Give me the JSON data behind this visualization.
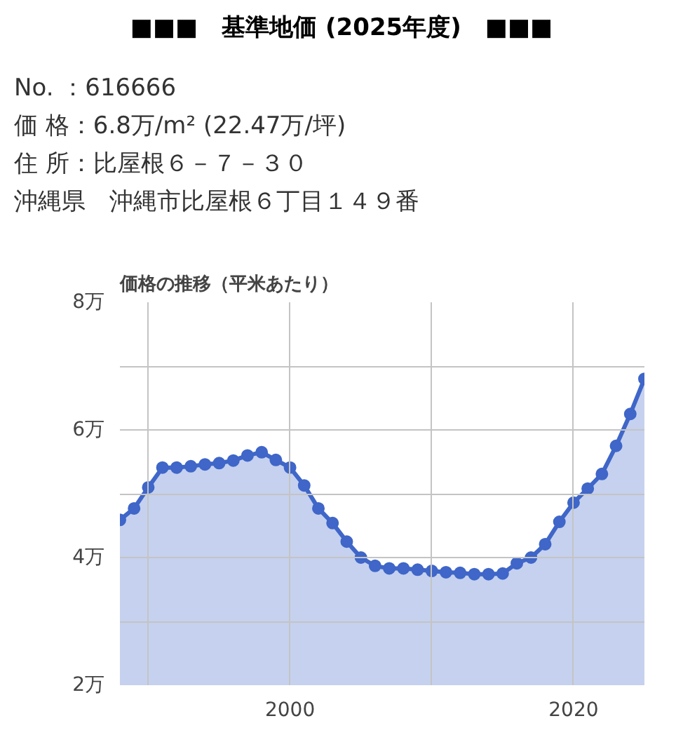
{
  "chart_data": {
    "type": "area",
    "title": "■■■　基準地価 (2025年度)　■■■",
    "annotations": [
      "No. ：616666",
      "価 格：6.8万/m² (22.47万/坪)",
      "住 所：比屋根６－７－３０",
      "沖縄県　沖縄市比屋根６丁目１４９番"
    ],
    "subtitle": "価格の推移（平米あたり）",
    "x": [
      1988,
      1989,
      1990,
      1991,
      1992,
      1993,
      1994,
      1995,
      1996,
      1997,
      1998,
      1999,
      2000,
      2001,
      2002,
      2003,
      2004,
      2005,
      2006,
      2007,
      2008,
      2009,
      2010,
      2011,
      2012,
      2013,
      2014,
      2015,
      2016,
      2017,
      2018,
      2019,
      2020,
      2021,
      2022,
      2023,
      2024,
      2025
    ],
    "series": [
      {
        "color": "#3f66c8",
        "values": [
          4.59,
          4.77,
          5.1,
          5.41,
          5.41,
          5.43,
          5.46,
          5.48,
          5.52,
          5.6,
          5.65,
          5.53,
          5.41,
          5.13,
          4.77,
          4.54,
          4.25,
          4.0,
          3.87,
          3.83,
          3.83,
          3.81,
          3.79,
          3.77,
          3.76,
          3.74,
          3.74,
          3.75,
          3.91,
          4.0,
          4.21,
          4.56,
          4.86,
          5.08,
          5.31,
          5.75,
          6.25,
          6.8
        ]
      }
    ],
    "xlim": [
      1988,
      2025
    ],
    "xticks": [
      {
        "value": 1990,
        "label": null
      },
      2000,
      {
        "value": 2010,
        "label": null
      },
      2020
    ],
    "ylim": [
      2,
      8
    ],
    "yticks": [
      {
        "value": 2,
        "label": "2万"
      },
      {
        "value": 3,
        "label": null
      },
      {
        "value": 4,
        "label": "4万"
      },
      {
        "value": 5,
        "label": null
      },
      {
        "value": 6,
        "label": "6万"
      },
      {
        "value": 7,
        "label": null
      },
      {
        "value": 8,
        "label": "8万"
      }
    ],
    "grid": true,
    "marker": "circle",
    "line_style": "solid"
  }
}
